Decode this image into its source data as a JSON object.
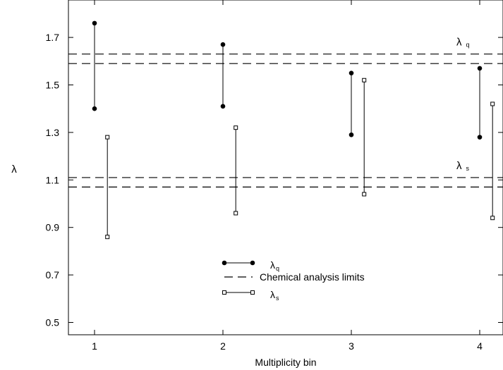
{
  "chart_data": {
    "type": "range",
    "xlabel": "Multiplicity bin",
    "ylabel": "λ",
    "xlim": [
      0.8,
      4.2
    ],
    "ylim": [
      0.5,
      1.9
    ],
    "x_ticks": [
      1,
      2,
      3,
      4
    ],
    "y_ticks": [
      0.5,
      0.7,
      0.9,
      1.1,
      1.3,
      1.5,
      1.7
    ],
    "grid": false,
    "series": [
      {
        "name": "λq",
        "marker": "filled-circle",
        "ranges": [
          {
            "x": 1.0,
            "low": 1.4,
            "high": 1.76
          },
          {
            "x": 2.0,
            "low": 1.41,
            "high": 1.67
          },
          {
            "x": 3.0,
            "low": 1.29,
            "high": 1.55
          },
          {
            "x": 4.0,
            "low": 1.28,
            "high": 1.57
          }
        ]
      },
      {
        "name": "λs",
        "marker": "open-square",
        "ranges": [
          {
            "x": 1.1,
            "low": 0.86,
            "high": 1.28
          },
          {
            "x": 2.1,
            "low": 0.96,
            "high": 1.32
          },
          {
            "x": 3.1,
            "low": 1.04,
            "high": 1.52
          },
          {
            "x": 4.1,
            "low": 0.94,
            "high": 1.42
          }
        ]
      }
    ],
    "reference_lines": [
      {
        "group": "λq",
        "y": [
          1.59,
          1.63
        ],
        "style": "dashed"
      },
      {
        "group": "λs",
        "y": [
          1.07,
          1.11
        ],
        "style": "dashed"
      }
    ],
    "annotations": [
      {
        "base": "λ",
        "sub": "q",
        "near_y": 1.63
      },
      {
        "base": "λ",
        "sub": "s",
        "near_y": 1.11
      }
    ],
    "legend": {
      "placement": "bottom-center",
      "entries": [
        {
          "base": "λ",
          "sub": "q",
          "marker": "filled-circle"
        },
        {
          "label": "Chemical analysis limits",
          "marker": "dashed-line"
        },
        {
          "base": "λ",
          "sub": "s",
          "marker": "open-square"
        }
      ]
    }
  }
}
